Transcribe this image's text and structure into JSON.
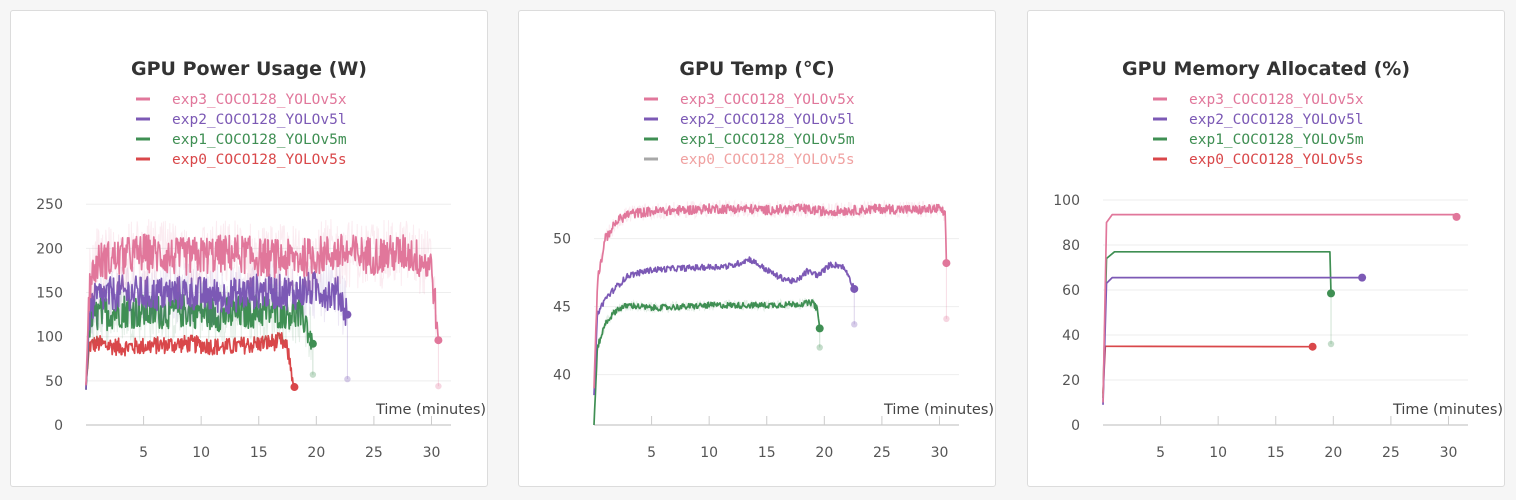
{
  "colors": {
    "exp3": "#e1779b",
    "exp2": "#7c59b5",
    "exp1": "#3f8f53",
    "exp0": "#d9474a",
    "grey": "#a8a8a8"
  },
  "chart_data": [
    {
      "type": "line",
      "title": "GPU Power Usage (W)",
      "xlabel": "Time (minutes)",
      "ylabel": "",
      "xlim": [
        0,
        31
      ],
      "ylim": [
        0,
        265
      ],
      "x_ticks": [
        5,
        10,
        15,
        20,
        25,
        30
      ],
      "y_ticks": [
        0,
        50,
        100,
        150,
        200,
        250
      ],
      "legend_position": "top-center",
      "series": [
        {
          "name": "exp3_COCO128_YOLOv5x",
          "color": "#e1779b",
          "points": [
            [
              0,
              45
            ],
            [
              0.3,
              160
            ],
            [
              1,
              185
            ],
            [
              3,
              190
            ],
            [
              5,
              195
            ],
            [
              8,
              190
            ],
            [
              10,
              192
            ],
            [
              13,
              195
            ],
            [
              15,
              190
            ],
            [
              18,
              188
            ],
            [
              20,
              192
            ],
            [
              22,
              195
            ],
            [
              25,
              192
            ],
            [
              28,
              195
            ],
            [
              30,
              180
            ],
            [
              30.6,
              96
            ]
          ],
          "noise": 22,
          "trace": true,
          "end": [
            30.6,
            96
          ],
          "ghost": [
            30.6,
            44
          ]
        },
        {
          "name": "exp2_COCO128_YOLOv5l",
          "color": "#7c59b5",
          "points": [
            [
              0,
              40
            ],
            [
              0.3,
              130
            ],
            [
              1,
              145
            ],
            [
              3,
              150
            ],
            [
              6,
              148
            ],
            [
              9,
              150
            ],
            [
              12,
              145
            ],
            [
              15,
              152
            ],
            [
              18,
              150
            ],
            [
              20,
              155
            ],
            [
              21,
              150
            ],
            [
              22,
              148
            ],
            [
              22.7,
              125
            ]
          ],
          "noise": 20,
          "trace": true,
          "end": [
            22.7,
            125
          ],
          "ghost": [
            22.7,
            52
          ]
        },
        {
          "name": "exp1_COCO128_YOLOv5m",
          "color": "#3f8f53",
          "points": [
            [
              0,
              40
            ],
            [
              0.3,
              115
            ],
            [
              1,
              125
            ],
            [
              3,
              130
            ],
            [
              6,
              128
            ],
            [
              9,
              130
            ],
            [
              12,
              125
            ],
            [
              15,
              130
            ],
            [
              18,
              128
            ],
            [
              19,
              120
            ],
            [
              19.7,
              92
            ]
          ],
          "noise": 20,
          "trace": true,
          "end": [
            19.7,
            92
          ],
          "ghost": [
            19.7,
            57
          ]
        },
        {
          "name": "exp0_COCO128_YOLOv5s",
          "color": "#d9474a",
          "points": [
            [
              0,
              45
            ],
            [
              0.3,
              90
            ],
            [
              1,
              92
            ],
            [
              3,
              88
            ],
            [
              6,
              90
            ],
            [
              9,
              92
            ],
            [
              12,
              88
            ],
            [
              15,
              92
            ],
            [
              17,
              95
            ],
            [
              17.5,
              85
            ],
            [
              18.1,
              43
            ]
          ],
          "noise": 10,
          "trace": false,
          "end": [
            18.1,
            43
          ],
          "ghost": null
        }
      ]
    },
    {
      "type": "line",
      "title": "GPU Temp (℃)",
      "xlabel": "Time (minutes)",
      "ylabel": "",
      "xlim": [
        0,
        31
      ],
      "ylim": [
        36.3,
        53.5
      ],
      "x_ticks": [
        5,
        10,
        15,
        20,
        25,
        30
      ],
      "y_ticks": [
        40,
        45,
        50
      ],
      "legend_position": "top-center",
      "series": [
        {
          "name": "exp3_COCO128_YOLOv5x",
          "color": "#e1779b",
          "points": [
            [
              0,
              39
            ],
            [
              0.3,
              47
            ],
            [
              1,
              50
            ],
            [
              2,
              51.3
            ],
            [
              3,
              51.8
            ],
            [
              5,
              52
            ],
            [
              8,
              52.1
            ],
            [
              10,
              52.2
            ],
            [
              13,
              52.2
            ],
            [
              15,
              52.1
            ],
            [
              18,
              52.2
            ],
            [
              20,
              52
            ],
            [
              23,
              52.1
            ],
            [
              25,
              52.2
            ],
            [
              28,
              52.1
            ],
            [
              30,
              52.2
            ],
            [
              30.5,
              51.8
            ],
            [
              30.6,
              48.2
            ]
          ],
          "noise": 0.35,
          "trace": true,
          "end": [
            30.6,
            48.2
          ],
          "ghost": [
            30.6,
            44.1
          ]
        },
        {
          "name": "exp2_COCO128_YOLOv5l",
          "color": "#7c59b5",
          "points": [
            [
              0,
              38.5
            ],
            [
              0.3,
              44.5
            ],
            [
              1,
              45.6
            ],
            [
              2,
              46.5
            ],
            [
              3,
              47.3
            ],
            [
              5,
              47.7
            ],
            [
              7,
              47.8
            ],
            [
              10,
              47.9
            ],
            [
              12,
              48
            ],
            [
              13.5,
              48.5
            ],
            [
              15,
              47.7
            ],
            [
              16,
              47.2
            ],
            [
              17.5,
              46.8
            ],
            [
              18.5,
              47.6
            ],
            [
              19.5,
              47.3
            ],
            [
              20.5,
              48.1
            ],
            [
              21.5,
              48
            ],
            [
              22,
              47.5
            ],
            [
              22.6,
              46.3
            ]
          ],
          "noise": 0.22,
          "trace": false,
          "end": [
            22.6,
            46.3
          ],
          "ghost": [
            22.6,
            43.7
          ]
        },
        {
          "name": "exp1_COCO128_YOLOv5m",
          "color": "#3f8f53",
          "points": [
            [
              0,
              36.3
            ],
            [
              0.3,
              42
            ],
            [
              1,
              43.8
            ],
            [
              2,
              44.8
            ],
            [
              3,
              45.1
            ],
            [
              5,
              44.9
            ],
            [
              8,
              45
            ],
            [
              10,
              45.1
            ],
            [
              13,
              45.1
            ],
            [
              15,
              45.1
            ],
            [
              18,
              45.2
            ],
            [
              19,
              45.3
            ],
            [
              19.4,
              44.8
            ],
            [
              19.6,
              43.4
            ]
          ],
          "noise": 0.22,
          "trace": true,
          "end": [
            19.6,
            43.4
          ],
          "ghost": [
            19.6,
            42
          ]
        },
        {
          "name": "exp0_COCO128_YOLOv5s",
          "color": "#a8a8a8",
          "text_color": "#f0a1a1",
          "points": [],
          "noise": 0,
          "trace": false,
          "end": null,
          "ghost": null
        }
      ]
    },
    {
      "type": "line",
      "title": "GPU Memory Allocated (%)",
      "xlabel": "Time (minutes)",
      "ylabel": "",
      "xlim": [
        0,
        31
      ],
      "ylim": [
        0,
        104
      ],
      "x_ticks": [
        5,
        10,
        15,
        20,
        25,
        30
      ],
      "y_ticks": [
        0,
        20,
        40,
        60,
        80,
        100
      ],
      "legend_position": "top-center",
      "series": [
        {
          "name": "exp3_COCO128_YOLOv5x",
          "color": "#e1779b",
          "points": [
            [
              0,
              10
            ],
            [
              0.3,
              90
            ],
            [
              0.8,
              93.5
            ],
            [
              30.6,
              93.5
            ],
            [
              30.7,
              92.5
            ]
          ],
          "noise": 0,
          "trace": false,
          "end": [
            30.7,
            92.5
          ],
          "ghost": null
        },
        {
          "name": "exp2_COCO128_YOLOv5l",
          "color": "#7c59b5",
          "points": [
            [
              0,
              9
            ],
            [
              0.3,
              63
            ],
            [
              0.8,
              65.5
            ],
            [
              22.5,
              65.5
            ]
          ],
          "noise": 0,
          "trace": false,
          "end": [
            22.5,
            65.5
          ],
          "ghost": null
        },
        {
          "name": "exp1_COCO128_YOLOv5m",
          "color": "#3f8f53",
          "points": [
            [
              0,
              12
            ],
            [
              0.3,
              74
            ],
            [
              1,
              77
            ],
            [
              19.7,
              77
            ],
            [
              19.8,
              58.5
            ]
          ],
          "noise": 0,
          "trace": false,
          "end": [
            19.8,
            58.5
          ],
          "ghost": [
            19.8,
            36
          ]
        },
        {
          "name": "exp0_COCO128_YOLOv5s",
          "color": "#d9474a",
          "points": [
            [
              0,
              14
            ],
            [
              0.2,
              35
            ],
            [
              0.5,
              35
            ],
            [
              18.2,
              34.8
            ]
          ],
          "noise": 0,
          "trace": false,
          "end": [
            18.2,
            34.8
          ],
          "ghost": null
        }
      ]
    }
  ]
}
